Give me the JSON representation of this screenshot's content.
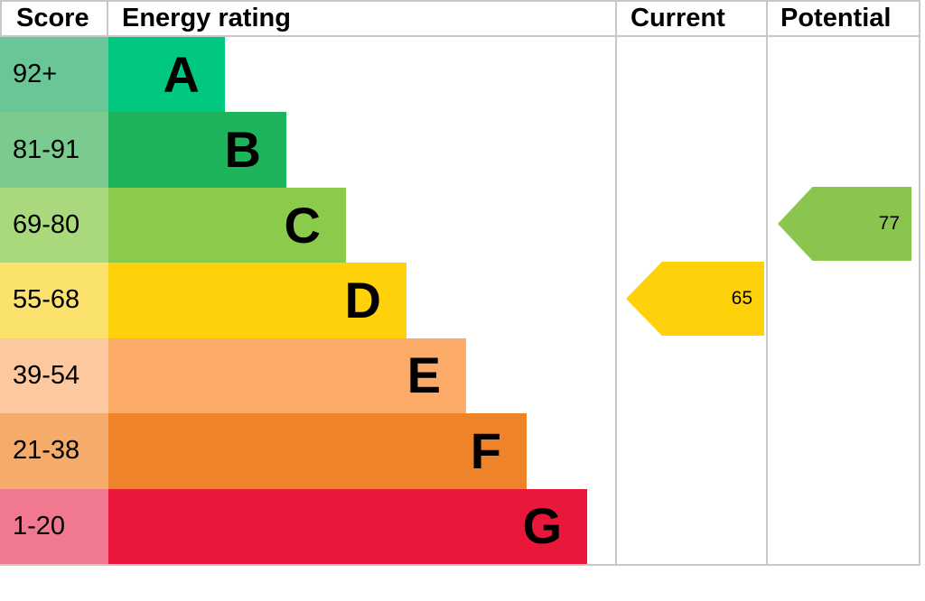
{
  "header": {
    "score_label": "Score",
    "energy_rating_label": "Energy rating",
    "current_label": "Current",
    "potential_label": "Potential"
  },
  "colors": {
    "border": "#c8c8c8",
    "text": "#000000"
  },
  "chart_data": {
    "type": "bar",
    "title": "Energy rating",
    "columns": [
      "Score",
      "Energy rating",
      "Current",
      "Potential"
    ],
    "bands": [
      {
        "letter": "A",
        "score_range": "92+",
        "bar_color": "#00c881",
        "score_cell_color": "#69c797"
      },
      {
        "letter": "B",
        "score_range": "81-91",
        "bar_color": "#1eb45b",
        "score_cell_color": "#7bcb90"
      },
      {
        "letter": "C",
        "score_range": "69-80",
        "bar_color": "#8acb4b",
        "score_cell_color": "#a9d87d"
      },
      {
        "letter": "D",
        "score_range": "55-68",
        "bar_color": "#fed10b",
        "score_cell_color": "#fae26d"
      },
      {
        "letter": "E",
        "score_range": "39-54",
        "bar_color": "#fbaa68",
        "score_cell_color": "#fcc89f"
      },
      {
        "letter": "F",
        "score_range": "21-38",
        "bar_color": "#ee8329",
        "score_cell_color": "#f5ab69"
      },
      {
        "letter": "G",
        "score_range": "1-20",
        "bar_color": "#e9183a",
        "score_cell_color": "#f1798f"
      }
    ],
    "current": {
      "value": "65",
      "band": "D",
      "arrow_color": "#fed10b"
    },
    "potential": {
      "value": "77",
      "band": "C",
      "arrow_color": "#8ac64f"
    }
  }
}
